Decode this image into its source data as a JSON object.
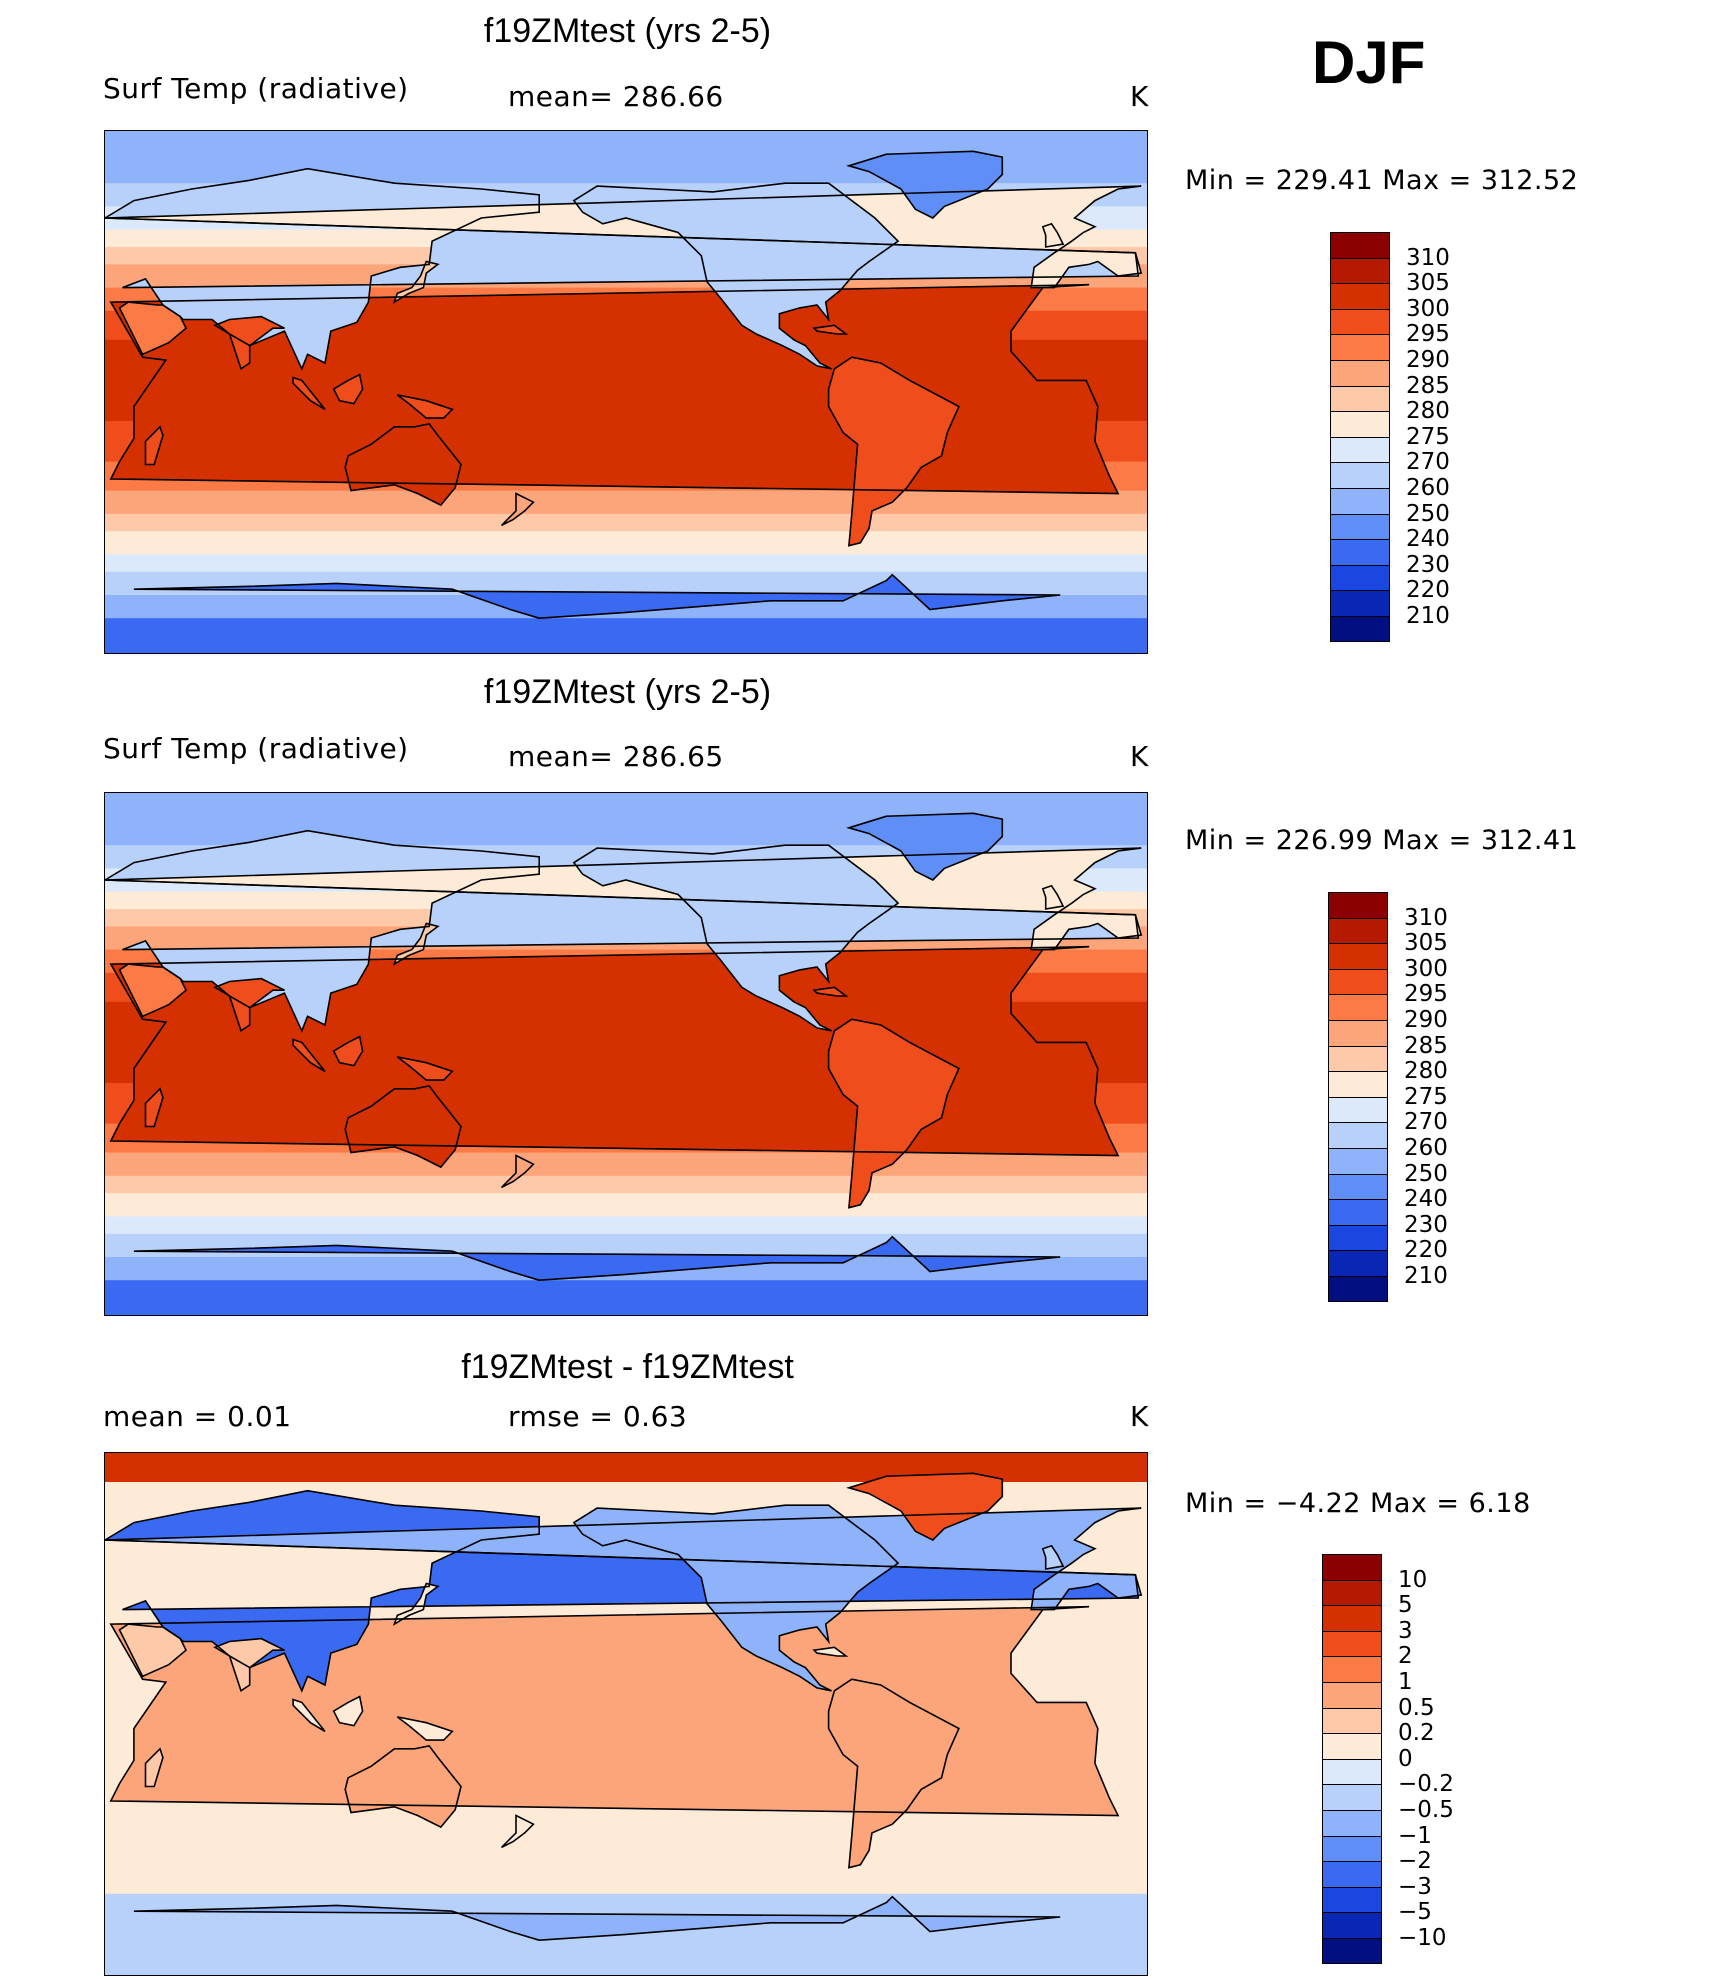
{
  "season": "DJF",
  "unit": "K",
  "panels": [
    {
      "title": "f19ZMtest (yrs 2-5)",
      "left_label": "Surf Temp (radiative)",
      "center_label": "mean= 286.66",
      "right_label": "K",
      "minmax": "Min = 229.41 Max = 312.52"
    },
    {
      "title": "f19ZMtest (yrs 2-5)",
      "left_label": "Surf Temp (radiative)",
      "center_label": "mean= 286.65",
      "right_label": "K",
      "minmax": "Min = 226.99 Max = 312.41"
    },
    {
      "title": "f19ZMtest - f19ZMtest",
      "left_label": "mean =    0.01",
      "center_label": "rmse =    0.63",
      "right_label": "K",
      "minmax": "Min =   −4.22 Max =    6.18"
    }
  ],
  "chart_data": [
    {
      "type": "heatmap",
      "title": "f19ZMtest (yrs 2-5)",
      "variable": "Surf Temp (radiative)",
      "units": "K",
      "mean": 286.66,
      "min": 229.41,
      "max": 312.52,
      "colorbar_levels": [
        "310",
        "305",
        "300",
        "295",
        "290",
        "285",
        "280",
        "275",
        "270",
        "260",
        "250",
        "240",
        "230",
        "220",
        "210"
      ],
      "colorbar_colors": [
        "#8b0000",
        "#b51a00",
        "#d53100",
        "#ef4e1c",
        "#fb7a45",
        "#fca47a",
        "#fdc9a8",
        "#fdebd8",
        "#dbe9fb",
        "#b8d1fb",
        "#8fb3fa",
        "#5f8ff6",
        "#3b6af2",
        "#1a47e0",
        "#0a26b4",
        "#020f80"
      ],
      "grid": false
    },
    {
      "type": "heatmap",
      "title": "f19ZMtest (yrs 2-5)",
      "variable": "Surf Temp (radiative)",
      "units": "K",
      "mean": 286.65,
      "min": 226.99,
      "max": 312.41,
      "colorbar_levels": [
        "310",
        "305",
        "300",
        "295",
        "290",
        "285",
        "280",
        "275",
        "270",
        "260",
        "250",
        "240",
        "230",
        "220",
        "210"
      ],
      "colorbar_colors": [
        "#8b0000",
        "#b51a00",
        "#d53100",
        "#ef4e1c",
        "#fb7a45",
        "#fca47a",
        "#fdc9a8",
        "#fdebd8",
        "#dbe9fb",
        "#b8d1fb",
        "#8fb3fa",
        "#5f8ff6",
        "#3b6af2",
        "#1a47e0",
        "#0a26b4",
        "#020f80"
      ],
      "grid": false
    },
    {
      "type": "heatmap",
      "title": "f19ZMtest - f19ZMtest",
      "units": "K",
      "mean": 0.01,
      "rmse": 0.63,
      "min": -4.22,
      "max": 6.18,
      "colorbar_levels": [
        "10",
        "5",
        "3",
        "2",
        "1",
        "0.5",
        "0.2",
        "0",
        "−0.2",
        "−0.5",
        "−1",
        "−2",
        "−3",
        "−5",
        "−10"
      ],
      "colorbar_colors": [
        "#8b0000",
        "#b51a00",
        "#d53100",
        "#ef4e1c",
        "#fb7a45",
        "#fca47a",
        "#fdc9a8",
        "#fdebd8",
        "#dbe9fb",
        "#b8d1fb",
        "#8fb3fa",
        "#5f8ff6",
        "#3b6af2",
        "#1a47e0",
        "#0a26b4",
        "#020f80"
      ],
      "grid": false
    }
  ]
}
